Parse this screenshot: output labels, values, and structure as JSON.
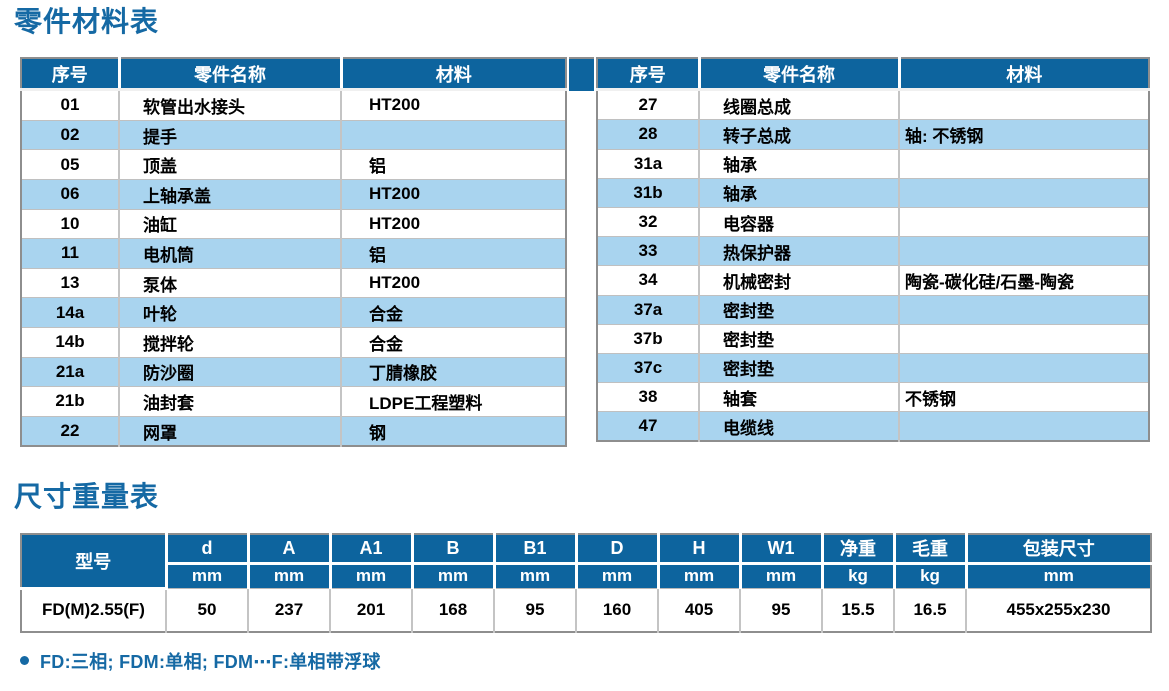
{
  "titles": {
    "parts": "零件材料表",
    "dims": "尺寸重量表"
  },
  "footnote": {
    "text": "FD:三相; FDM:单相; FDM⋯F:单相带浮球"
  },
  "colors": {
    "header_bg": "#0d649e",
    "stripe_bg": "#a9d4ef",
    "accent_text": "#1569a4"
  },
  "parts_table": {
    "headers": [
      "序号",
      "零件名称",
      "材料"
    ],
    "left_rows": [
      {
        "no": "01",
        "name": "软管出水接头",
        "material": "HT200"
      },
      {
        "no": "02",
        "name": "提手",
        "material": ""
      },
      {
        "no": "05",
        "name": "顶盖",
        "material": "铝"
      },
      {
        "no": "06",
        "name": "上轴承盖",
        "material": "HT200"
      },
      {
        "no": "10",
        "name": "油缸",
        "material": "HT200"
      },
      {
        "no": "11",
        "name": "电机筒",
        "material": "铝"
      },
      {
        "no": "13",
        "name": "泵体",
        "material": "HT200"
      },
      {
        "no": "14a",
        "name": "叶轮",
        "material": "合金"
      },
      {
        "no": "14b",
        "name": "搅拌轮",
        "material": "合金"
      },
      {
        "no": "21a",
        "name": "防沙圈",
        "material": "丁腈橡胶"
      },
      {
        "no": "21b",
        "name": "油封套",
        "material": "LDPE工程塑料"
      },
      {
        "no": "22",
        "name": "网罩",
        "material": "钢"
      }
    ],
    "right_rows": [
      {
        "no": "27",
        "name": "线圈总成",
        "material": ""
      },
      {
        "no": "28",
        "name": "转子总成",
        "material": "轴: 不锈钢"
      },
      {
        "no": "31a",
        "name": "轴承",
        "material": ""
      },
      {
        "no": "31b",
        "name": "轴承",
        "material": ""
      },
      {
        "no": "32",
        "name": "电容器",
        "material": ""
      },
      {
        "no": "33",
        "name": "热保护器",
        "material": ""
      },
      {
        "no": "34",
        "name": "机械密封",
        "material": "陶瓷-碳化硅/石墨-陶瓷"
      },
      {
        "no": "37a",
        "name": "密封垫",
        "material": ""
      },
      {
        "no": "37b",
        "name": "密封垫",
        "material": ""
      },
      {
        "no": "37c",
        "name": "密封垫",
        "material": ""
      },
      {
        "no": "38",
        "name": "轴套",
        "material": "不锈钢"
      },
      {
        "no": "47",
        "name": "电缆线",
        "material": ""
      }
    ]
  },
  "dims_table": {
    "model_header": "型号",
    "columns": [
      {
        "label": "d",
        "unit": "mm"
      },
      {
        "label": "A",
        "unit": "mm"
      },
      {
        "label": "A1",
        "unit": "mm"
      },
      {
        "label": "B",
        "unit": "mm"
      },
      {
        "label": "B1",
        "unit": "mm"
      },
      {
        "label": "D",
        "unit": "mm"
      },
      {
        "label": "H",
        "unit": "mm"
      },
      {
        "label": "W1",
        "unit": "mm"
      },
      {
        "label": "净重",
        "unit": "kg"
      },
      {
        "label": "毛重",
        "unit": "kg"
      },
      {
        "label": "包装尺寸",
        "unit": "mm"
      }
    ],
    "row": {
      "model": "FD(M)2.55(F)",
      "values": [
        "50",
        "237",
        "201",
        "168",
        "95",
        "160",
        "405",
        "95",
        "15.5",
        "16.5",
        "455x255x230"
      ]
    }
  }
}
